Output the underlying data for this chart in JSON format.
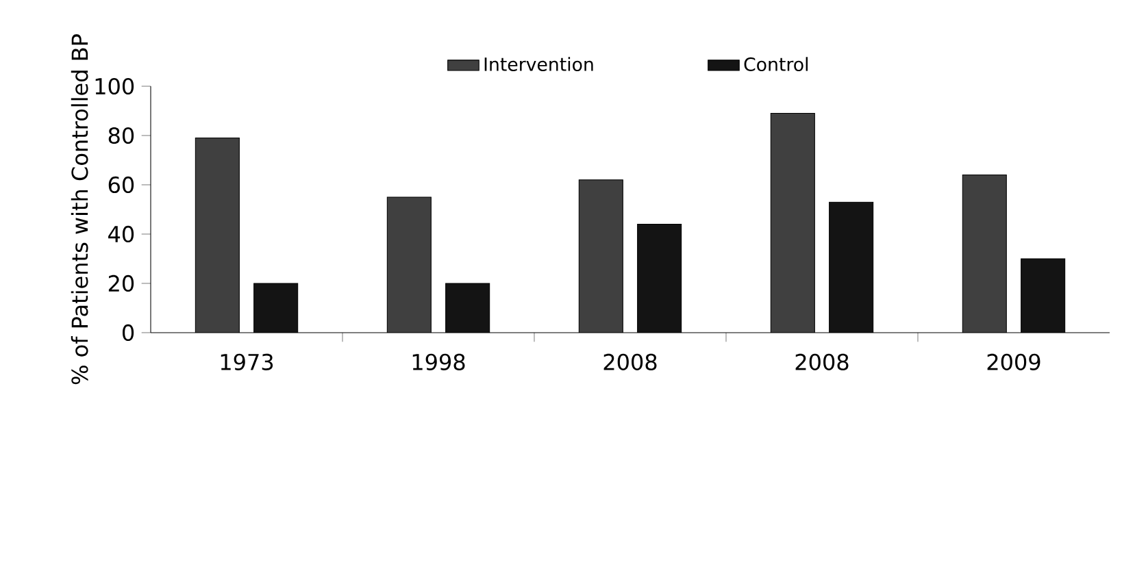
{
  "chart_data": {
    "type": "bar",
    "ylabel": "% of Patients with Controlled BP",
    "categories": [
      "1973",
      "1998",
      "2008",
      "2008",
      "2009"
    ],
    "series": [
      {
        "name": "Intervention",
        "color": "#404040",
        "values": [
          79,
          55,
          62,
          89,
          64
        ]
      },
      {
        "name": "Control",
        "color": "#141414",
        "values": [
          20,
          20,
          44,
          53,
          30
        ]
      }
    ],
    "ylim": [
      0,
      100
    ],
    "yticks": [
      0,
      20,
      40,
      60,
      80,
      100
    ],
    "grid": false,
    "legend": "top"
  }
}
